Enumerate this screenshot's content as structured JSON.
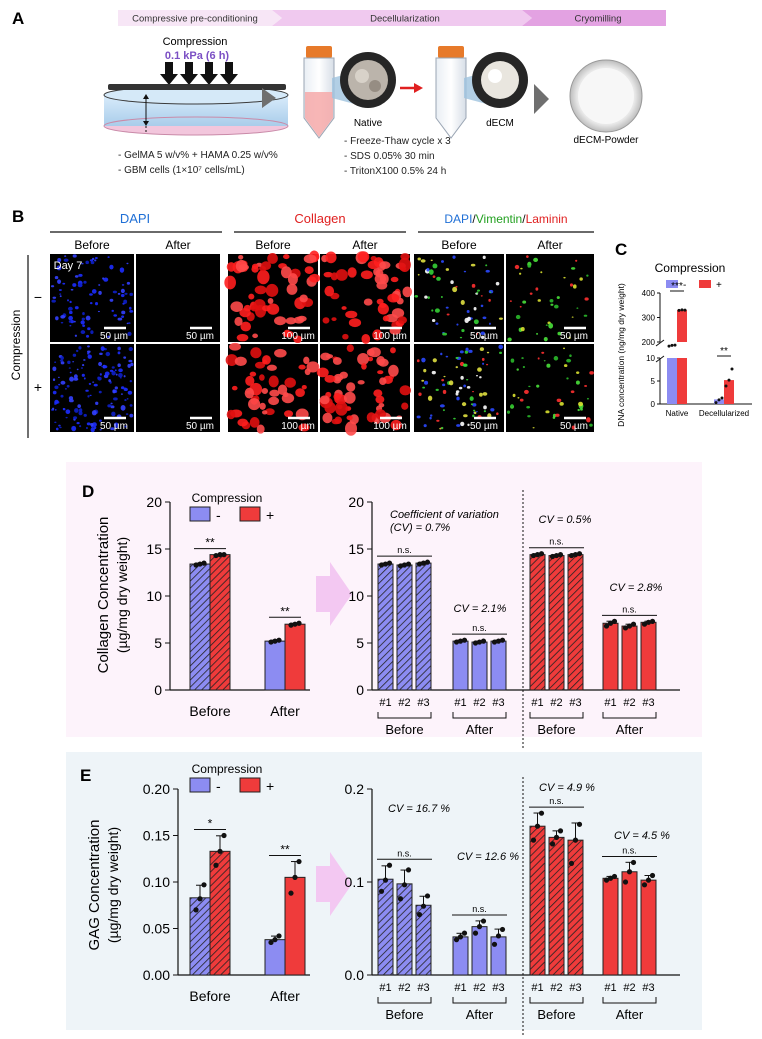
{
  "panelA": {
    "label": "A",
    "steps": [
      "Compressive pre-conditioning",
      "Decellularization",
      "Cryomilling"
    ],
    "compression_title": "Compression",
    "compression_value": "0.1 kPa (6 h)",
    "gel_notes": [
      "- GelMA  5 w/v% + HAMA 0.25 w/v%",
      "- GBM cells  (1×10⁷ cells/mL)"
    ],
    "native_label": "Native",
    "decm_label": "dECM",
    "powder_label": "dECM-Powder",
    "decell_notes": [
      "- Freeze-Thaw cycle x 3",
      "- SDS 0.05% 30 min",
      "- TritonX100 0.5% 24 h"
    ]
  },
  "panelB": {
    "label": "B",
    "groups": [
      {
        "title": "DAPI",
        "color": "#1f6fd6"
      },
      {
        "title": "Collagen",
        "color": "#e02020"
      }
    ],
    "group3_parts": [
      {
        "text": "DAPI",
        "color": "#1f6fd6"
      },
      {
        "text": "/",
        "color": "#111111"
      },
      {
        "text": "Vimentin",
        "color": "#22a020"
      },
      {
        "text": "/",
        "color": "#111111"
      },
      {
        "text": "Laminin",
        "color": "#e02020"
      }
    ],
    "columns": [
      "Before",
      "After",
      "Before",
      "After",
      "Before",
      "After"
    ],
    "row_axis": "Compression",
    "rows": [
      "−",
      "+"
    ],
    "day_label": "Day 7",
    "scalebars": [
      [
        "50 µm",
        "50 µm",
        "100 µm",
        "100 µm",
        "50 µm",
        "50 µm"
      ],
      [
        "50 µm",
        "50 µm",
        "100 µm",
        "100 µm",
        "50 µm",
        "50 µm"
      ]
    ]
  },
  "colors": {
    "minus": "#8c8cf2",
    "plus": "#ef3b3b",
    "panelD_bg": "#fdf3fb",
    "panelE_bg": "#eef4f8",
    "arrow": "#f3c8f2"
  },
  "panelC": {
    "label": "C",
    "legend_title": "Compression",
    "legend_minus": "-",
    "legend_plus": "+",
    "chart_data": {
      "type": "bar",
      "categories": [
        "Native",
        "Decellularized"
      ],
      "series": [
        {
          "name": "-",
          "values": [
            185,
            1.0
          ],
          "points": [
            [
              183,
              186,
              187
            ],
            [
              0.3,
              0.9,
              1.3
            ]
          ]
        },
        {
          "name": "+",
          "values": [
            330,
            5.2
          ],
          "points": [
            [
              329,
              331,
              330
            ],
            [
              3.9,
              5.2,
              7.6
            ]
          ]
        }
      ],
      "ylabel": "DNA concentration (ng/mg dry weight)",
      "yticks_upper": [
        200,
        300,
        400
      ],
      "yticks_lower": [
        0,
        5,
        10
      ],
      "axis_break": true,
      "significance": [
        "***",
        "**"
      ]
    }
  },
  "panelD": {
    "label": "D",
    "legend_title": "Compression",
    "legend_minus": "-",
    "legend_plus": "+",
    "ylabel_line1": "Collagen Concentration",
    "ylabel_line2": "(µg/mg dry weight)",
    "left_chart": {
      "type": "bar",
      "categories": [
        "Before",
        "After"
      ],
      "series": [
        {
          "name": "-",
          "values": [
            13.4,
            5.2
          ],
          "points": [
            [
              13.3,
              13.4,
              13.5
            ],
            [
              5.1,
              5.2,
              5.3
            ]
          ]
        },
        {
          "name": "+",
          "values": [
            14.4,
            7.0
          ],
          "points": [
            [
              14.3,
              14.4,
              14.4
            ],
            [
              6.9,
              7.0,
              7.1
            ]
          ]
        }
      ],
      "ylim": [
        0,
        20
      ],
      "yticks": [
        0,
        5,
        10,
        15,
        20
      ],
      "significance": [
        "**",
        "**"
      ]
    },
    "right_chart": {
      "type": "bar",
      "subcategories": [
        "#1",
        "#2",
        "#3"
      ],
      "groups": [
        "Before",
        "After",
        "Before",
        "After"
      ],
      "series": [
        {
          "name": "-",
          "phase": "Before",
          "values": [
            13.4,
            13.3,
            13.5
          ],
          "points": [
            [
              13.3,
              13.4,
              13.5
            ],
            [
              13.2,
              13.3,
              13.4
            ],
            [
              13.4,
              13.5,
              13.6
            ]
          ]
        },
        {
          "name": "-",
          "phase": "After",
          "values": [
            5.2,
            5.1,
            5.2
          ],
          "points": [
            [
              5.1,
              5.2,
              5.3
            ],
            [
              5.0,
              5.1,
              5.2
            ],
            [
              5.1,
              5.2,
              5.3
            ]
          ]
        },
        {
          "name": "+",
          "phase": "Before",
          "values": [
            14.4,
            14.3,
            14.4
          ],
          "points": [
            [
              14.3,
              14.4,
              14.5
            ],
            [
              14.2,
              14.3,
              14.4
            ],
            [
              14.3,
              14.4,
              14.5
            ]
          ]
        },
        {
          "name": "+",
          "phase": "After",
          "values": [
            7.1,
            6.8,
            7.2
          ],
          "points": [
            [
              6.8,
              7.1,
              7.3
            ],
            [
              6.6,
              6.8,
              7.0
            ],
            [
              7.0,
              7.2,
              7.3
            ]
          ]
        }
      ],
      "ylim": [
        0,
        20
      ],
      "yticks": [
        0,
        5,
        10,
        15,
        20
      ],
      "cv_labels": [
        "Coefficient of variation",
        "(CV) = 0.7%",
        "CV = 2.1%",
        "CV = 0.5%",
        "CV = 2.8%"
      ],
      "ns": "n.s."
    }
  },
  "panelE": {
    "label": "E",
    "legend_title": "Compression",
    "legend_minus": "-",
    "legend_plus": "+",
    "ylabel_line1": "GAG Concentration",
    "ylabel_line2": "(µg/mg dry weight)",
    "left_chart": {
      "type": "bar",
      "categories": [
        "Before",
        "After"
      ],
      "series": [
        {
          "name": "-",
          "values": [
            0.083,
            0.038
          ],
          "points": [
            [
              0.07,
              0.082,
              0.097
            ],
            [
              0.035,
              0.038,
              0.042
            ]
          ]
        },
        {
          "name": "+",
          "values": [
            0.133,
            0.105
          ],
          "points": [
            [
              0.118,
              0.133,
              0.15
            ],
            [
              0.088,
              0.105,
              0.122
            ]
          ]
        }
      ],
      "ylim": [
        0,
        0.2
      ],
      "yticks": [
        0.0,
        0.05,
        0.1,
        0.15,
        0.2
      ],
      "significance": [
        "*",
        "**"
      ]
    },
    "right_chart": {
      "type": "bar",
      "subcategories": [
        "#1",
        "#2",
        "#3"
      ],
      "groups": [
        "Before",
        "After",
        "Before",
        "After"
      ],
      "series": [
        {
          "name": "-",
          "phase": "Before",
          "values": [
            0.103,
            0.098,
            0.075
          ],
          "points": [
            [
              0.09,
              0.102,
              0.118
            ],
            [
              0.082,
              0.097,
              0.113
            ],
            [
              0.065,
              0.074,
              0.085
            ]
          ]
        },
        {
          "name": "-",
          "phase": "After",
          "values": [
            0.041,
            0.052,
            0.041
          ],
          "points": [
            [
              0.038,
              0.041,
              0.045
            ],
            [
              0.045,
              0.052,
              0.058
            ],
            [
              0.033,
              0.042,
              0.049
            ]
          ]
        },
        {
          "name": "+",
          "phase": "Before",
          "values": [
            0.16,
            0.148,
            0.145
          ],
          "points": [
            [
              0.145,
              0.16,
              0.174
            ],
            [
              0.141,
              0.148,
              0.155
            ],
            [
              0.12,
              0.145,
              0.162
            ]
          ]
        },
        {
          "name": "+",
          "phase": "After",
          "values": [
            0.104,
            0.111,
            0.102
          ],
          "points": [
            [
              0.102,
              0.104,
              0.106
            ],
            [
              0.1,
              0.111,
              0.121
            ],
            [
              0.097,
              0.102,
              0.107
            ]
          ]
        }
      ],
      "ylim": [
        0,
        0.2
      ],
      "yticks": [
        0.0,
        0.1,
        0.2
      ],
      "cv_labels": [
        "CV = 16.7 %",
        "CV = 12.6 %",
        "CV =  4.9 %",
        "CV = 4.5 %"
      ],
      "ns": "n.s."
    }
  }
}
